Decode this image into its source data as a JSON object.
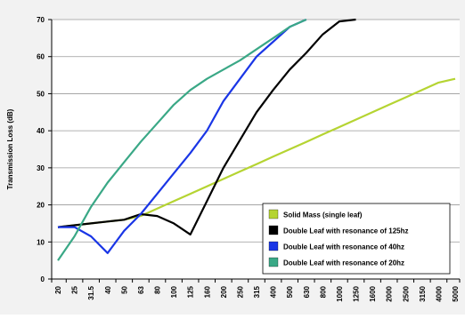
{
  "chart_data": {
    "type": "line",
    "title": "",
    "xlabel": "",
    "ylabel": "Transmission Loss (dB)",
    "ylim": [
      0,
      70
    ],
    "yticks": [
      0,
      10,
      20,
      30,
      40,
      50,
      60,
      70
    ],
    "grid": "horizontal",
    "legend_position": "bottom-right",
    "categories": [
      "20",
      "25",
      "31.5",
      "40",
      "50",
      "63",
      "80",
      "100",
      "125",
      "160",
      "200",
      "250",
      "315",
      "400",
      "500",
      "630",
      "800",
      "1000",
      "1250",
      "1600",
      "2000",
      "2500",
      "3150",
      "4000",
      "5000"
    ],
    "series": [
      {
        "name": "Solid Mass (single leaf)",
        "color": "#b5d432",
        "values": [
          14,
          14.5,
          15,
          15.5,
          16,
          17,
          19,
          21,
          23,
          25,
          27,
          29,
          31,
          33,
          35,
          37,
          39,
          41,
          43,
          45,
          47,
          49,
          51,
          53,
          54
        ]
      },
      {
        "name": "Double Leaf with resonance of 125hz",
        "color": "#000000",
        "values": [
          14,
          14.5,
          15,
          15.5,
          16,
          17.5,
          17,
          15,
          12,
          21,
          30,
          37.5,
          45,
          51,
          56.5,
          61,
          66,
          69.5,
          72,
          null,
          null,
          null,
          null,
          null,
          null
        ]
      },
      {
        "name": "Double Leaf with resonance of 40hz",
        "color": "#1a36e6",
        "values": [
          14,
          14,
          11.5,
          7,
          13,
          17.5,
          23,
          28.5,
          34,
          40,
          48,
          54,
          60,
          64,
          68,
          72,
          null,
          null,
          null,
          null,
          null,
          null,
          null,
          null,
          null
        ]
      },
      {
        "name": "Double Leaf with resonance of 20hz",
        "color": "#3aa886",
        "values": [
          5,
          11.5,
          19.5,
          26,
          31.5,
          37,
          42,
          47,
          51,
          54,
          56.5,
          59,
          62,
          65,
          68,
          71,
          null,
          null,
          null,
          null,
          null,
          null,
          null,
          null,
          null
        ]
      }
    ]
  }
}
